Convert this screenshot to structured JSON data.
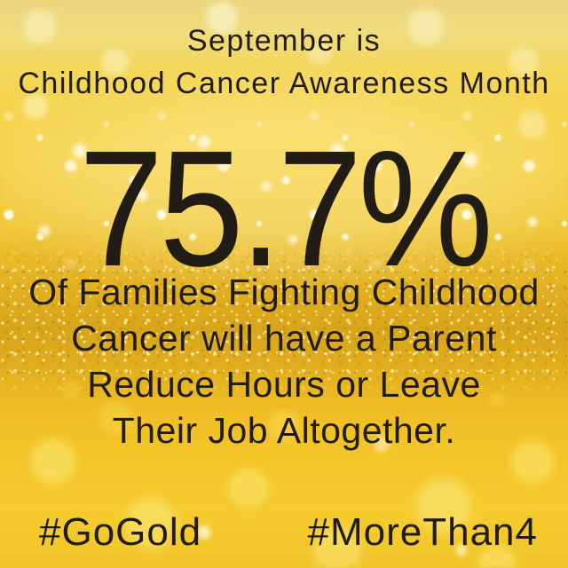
{
  "poster": {
    "header": {
      "line1": "September is",
      "line2": "Childhood Cancer Awareness Month"
    },
    "statistic": {
      "value": "75.7%"
    },
    "body": {
      "lines": [
        "Of Families Fighting Childhood",
        "Cancer will have a Parent",
        "Reduce Hours or Leave",
        "Their Job Altogether."
      ]
    },
    "footer": {
      "hashtag_left": "#GoGold",
      "hashtag_right": "#MoreThan4"
    },
    "colors": {
      "text": "#211d15",
      "gold_light": "#f0dc7d",
      "gold_mid": "#f2c933",
      "gold_deep": "#d8a51a",
      "bokeh_white": "#fffdf4"
    }
  }
}
